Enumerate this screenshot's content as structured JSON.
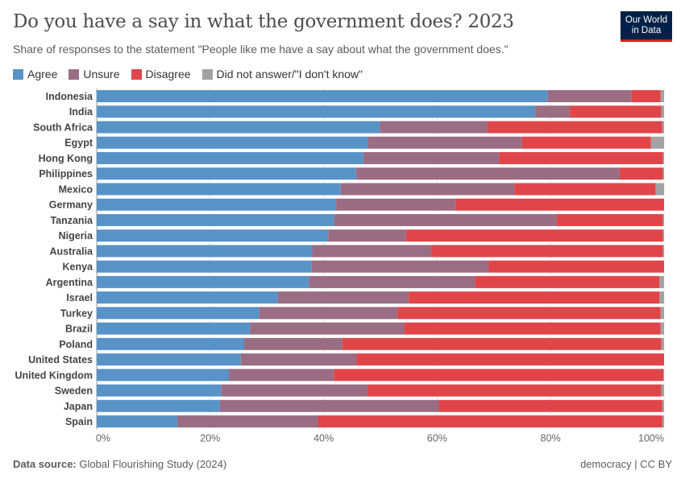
{
  "title": "Do you have a say in what the government does? 2023",
  "subtitle": "Share of responses to the statement \"People like me have a say about what the government does.\"",
  "logo": "Our World in Data",
  "footer": {
    "source_label": "Data source:",
    "source": "Global Flourishing Study (2024)",
    "license": "democracy | CC BY"
  },
  "chart_data": {
    "type": "bar",
    "orientation": "horizontal",
    "stacked": true,
    "title": "Do you have a say in what the government does? 2023",
    "xlim": [
      0,
      100
    ],
    "x_ticks": [
      "0%",
      "20%",
      "40%",
      "60%",
      "80%",
      "100%"
    ],
    "grid": true,
    "legend_position": "top-left",
    "categories": [
      "Indonesia",
      "India",
      "South Africa",
      "Egypt",
      "Hong Kong",
      "Philippines",
      "Mexico",
      "Germany",
      "Tanzania",
      "Nigeria",
      "Australia",
      "Kenya",
      "Argentina",
      "Israel",
      "Turkey",
      "Brazil",
      "Poland",
      "United States",
      "United Kingdom",
      "Sweden",
      "Japan",
      "Spain"
    ],
    "series": [
      {
        "name": "Agree",
        "color": "#5893c8",
        "values": [
          79.5,
          77.3,
          49.9,
          47.8,
          47.0,
          45.7,
          43.0,
          42.2,
          41.8,
          40.8,
          38.0,
          37.9,
          37.4,
          31.9,
          28.6,
          27.0,
          26.0,
          25.4,
          23.3,
          21.9,
          21.7,
          14.2
        ]
      },
      {
        "name": "Unsure",
        "color": "#9a6d84",
        "values": [
          14.8,
          6.1,
          19.0,
          27.1,
          23.9,
          46.5,
          30.6,
          21.1,
          39.3,
          13.7,
          20.9,
          31.2,
          29.3,
          23.1,
          24.4,
          27.2,
          17.3,
          20.4,
          18.5,
          25.9,
          38.6,
          24.8
        ]
      },
      {
        "name": "Disagree",
        "color": "#e0454a",
        "values": [
          5.1,
          16.1,
          30.8,
          22.8,
          28.9,
          7.6,
          24.9,
          36.7,
          18.7,
          45.3,
          40.9,
          30.9,
          32.5,
          44.2,
          46.4,
          45.2,
          56.2,
          54.2,
          58.1,
          51.7,
          39.4,
          60.7
        ]
      },
      {
        "name": "Did not answer/\"I don't know\"",
        "color": "#a2a2a2",
        "values": [
          0.6,
          0.5,
          0.3,
          2.3,
          0.2,
          0.2,
          1.5,
          0.0,
          0.2,
          0.2,
          0.2,
          0.0,
          0.8,
          0.8,
          0.6,
          0.6,
          0.5,
          0.0,
          0.1,
          0.5,
          0.3,
          0.3
        ]
      }
    ]
  }
}
